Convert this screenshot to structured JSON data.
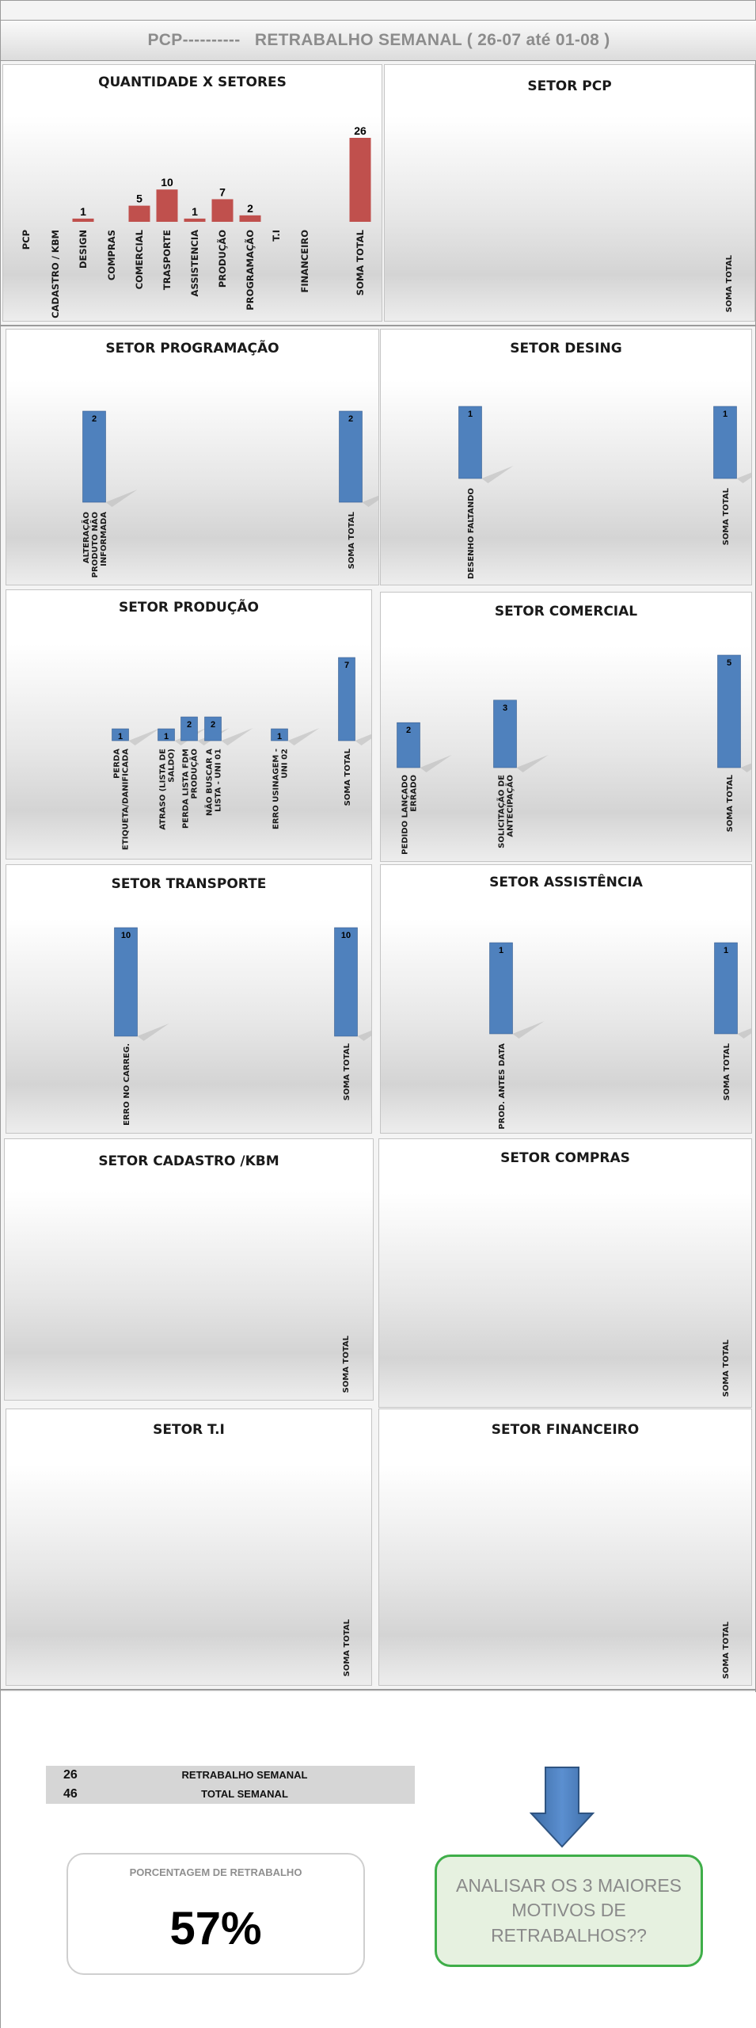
{
  "header": {
    "title": "PCP----------   RETRABALHO SEMANAL ( 26-07 até 01-08 )"
  },
  "chart_data": [
    {
      "id": "qtd",
      "type": "bar",
      "title": "QUANTIDADE X SETORES",
      "color": "#c0504d",
      "label_color": "#000000",
      "categories": [
        "PCP",
        "CADASTRO / KBM",
        "DESIGN",
        "COMPRAS",
        "COMERCIAL",
        "TRASPORTE",
        "ASSISTENCIA",
        "PRODUÇÃO",
        "PROGRAMAÇÃO",
        "T.I",
        "FINANCEIRO",
        "SOMA TOTAL"
      ],
      "values": [
        null,
        null,
        1,
        null,
        5,
        10,
        1,
        7,
        2,
        null,
        null,
        26
      ],
      "ylim": [
        0,
        26
      ]
    },
    {
      "id": "pcp",
      "type": "bar",
      "title": "SETOR PCP",
      "color": "#4f81bd",
      "label_color": "#000000",
      "categories": [
        "SOMA TOTAL"
      ],
      "values": [
        null
      ],
      "ylim": [
        0,
        1
      ]
    },
    {
      "id": "prog",
      "type": "bar",
      "title": "SETOR PROGRAMAÇÃO",
      "color": "#4f81bd",
      "label_color": "#000000",
      "categories": [
        "ALTERAÇÃO PRODUTO NÃO INFORMADA",
        "SOMA TOTAL"
      ],
      "values": [
        2,
        2
      ],
      "ylim": [
        0,
        2
      ]
    },
    {
      "id": "desing",
      "type": "bar",
      "title": "SETOR DESING",
      "color": "#4f81bd",
      "label_color": "#000000",
      "categories": [
        "DESENHO FALTANDO",
        "SOMA TOTAL"
      ],
      "values": [
        1,
        1
      ],
      "ylim": [
        0,
        1
      ]
    },
    {
      "id": "prod",
      "type": "bar",
      "title": "SETOR PRODUÇÃO",
      "color": "#4f81bd",
      "label_color": "#000000",
      "categories": [
        "PERDA ETIQUETA/DANIFICADA",
        "ATRASO (LISTA DE SALDO)",
        "PERDA LISTA FDM PRODUÇÃO",
        "NÃO BUSCAR A LISTA - UNI 01",
        "ERRO USINAGEM - UNI 02",
        "SOMA TOTAL"
      ],
      "values": [
        1,
        1,
        2,
        2,
        1,
        7
      ],
      "ylim": [
        0,
        7
      ]
    },
    {
      "id": "comercial",
      "type": "bar",
      "title": "SETOR COMERCIAL",
      "color": "#4f81bd",
      "label_color": "#000000",
      "categories": [
        "PEDIDO LANÇADO ERRADO",
        "SOLICITAÇÃO DE ANTECIPAÇÃO",
        "SOMA TOTAL"
      ],
      "values": [
        2,
        3,
        5
      ],
      "ylim": [
        0,
        5
      ]
    },
    {
      "id": "transporte",
      "type": "bar",
      "title": "SETOR TRANSPORTE",
      "color": "#4f81bd",
      "label_color": "#000000",
      "categories": [
        "ERRO NO CARREG.",
        "SOMA TOTAL"
      ],
      "values": [
        10,
        10
      ],
      "ylim": [
        0,
        10
      ]
    },
    {
      "id": "assist",
      "type": "bar",
      "title": "SETOR ASSISTÊNCIA",
      "color": "#4f81bd",
      "label_color": "#000000",
      "categories": [
        "PROD. ANTES DATA",
        "SOMA TOTAL"
      ],
      "values": [
        1,
        1
      ],
      "ylim": [
        0,
        1
      ]
    },
    {
      "id": "cadastro",
      "type": "bar",
      "title": "SETOR CADASTRO /KBM",
      "color": "#4f81bd",
      "label_color": "#000000",
      "categories": [
        "SOMA TOTAL"
      ],
      "values": [
        null
      ],
      "ylim": [
        0,
        1
      ]
    },
    {
      "id": "compras",
      "type": "bar",
      "title": "SETOR COMPRAS",
      "color": "#4f81bd",
      "label_color": "#000000",
      "categories": [
        "SOMA TOTAL"
      ],
      "values": [
        null
      ],
      "ylim": [
        0,
        1
      ]
    },
    {
      "id": "ti",
      "type": "bar",
      "title": "SETOR T.I",
      "color": "#4f81bd",
      "label_color": "#000000",
      "categories": [
        "SOMA TOTAL"
      ],
      "values": [
        null
      ],
      "ylim": [
        0,
        1
      ]
    },
    {
      "id": "fin",
      "type": "bar",
      "title": "SETOR FINANCEIRO",
      "color": "#4f81bd",
      "label_color": "#000000",
      "categories": [
        "SOMA TOTAL"
      ],
      "values": [
        null
      ],
      "ylim": [
        0,
        1
      ]
    }
  ],
  "summary": {
    "rows": [
      {
        "value": "26",
        "label": "RETRABALHO SEMANAL"
      },
      {
        "value": "46",
        "label": "TOTAL  SEMANAL"
      }
    ],
    "percent_label": "PORCENTAGEM DE RETRABALHO",
    "percent_value": "57%",
    "note": "ANALISAR OS 3 MAIORES MOTIVOS DE RETRABALHOS??"
  }
}
